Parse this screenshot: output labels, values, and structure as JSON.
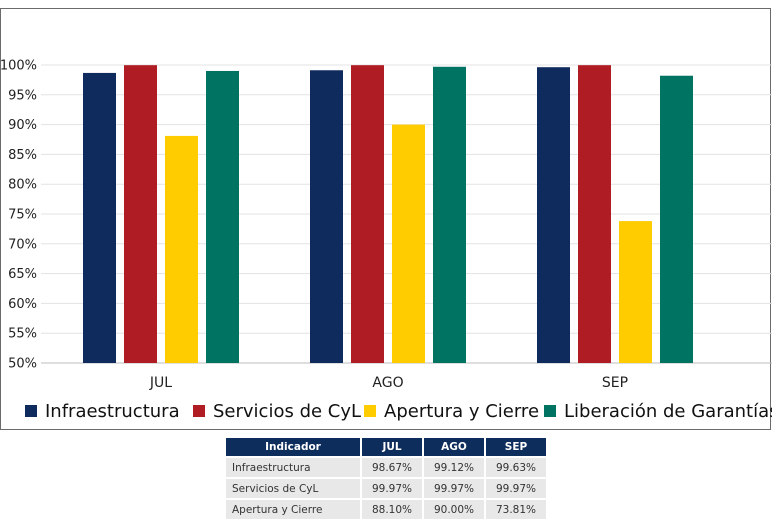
{
  "chart_data": {
    "type": "bar",
    "categories": [
      "JUL",
      "AGO",
      "SEP"
    ],
    "series": [
      {
        "name": "Infraestructura",
        "color": "#0f2a5c",
        "values": [
          98.67,
          99.12,
          99.63
        ]
      },
      {
        "name": "Servicios de CyL",
        "color": "#b01c23",
        "values": [
          99.97,
          99.97,
          99.97
        ]
      },
      {
        "name": "Apertura y Cierre",
        "color": "#ffcc00",
        "values": [
          88.1,
          90.0,
          73.81
        ]
      },
      {
        "name": "Liberación de Garantías",
        "color": "#007363",
        "values": [
          99.0,
          99.7,
          98.2
        ]
      }
    ],
    "ylim": [
      50,
      100
    ],
    "yticks": [
      "50%",
      "55%",
      "60%",
      "65%",
      "70%",
      "75%",
      "80%",
      "85%",
      "90%",
      "95%",
      "100%"
    ],
    "grid": true,
    "legend_position": "bottom"
  },
  "table": {
    "headers": [
      "Indicador",
      "JUL",
      "AGO",
      "SEP"
    ],
    "rows": [
      [
        "Infraestructura",
        "98.67%",
        "99.12%",
        "99.63%"
      ],
      [
        "Servicios de CyL",
        "99.97%",
        "99.97%",
        "99.97%"
      ],
      [
        "Apertura y Cierre",
        "88.10%",
        "90.00%",
        "73.81%"
      ]
    ]
  }
}
